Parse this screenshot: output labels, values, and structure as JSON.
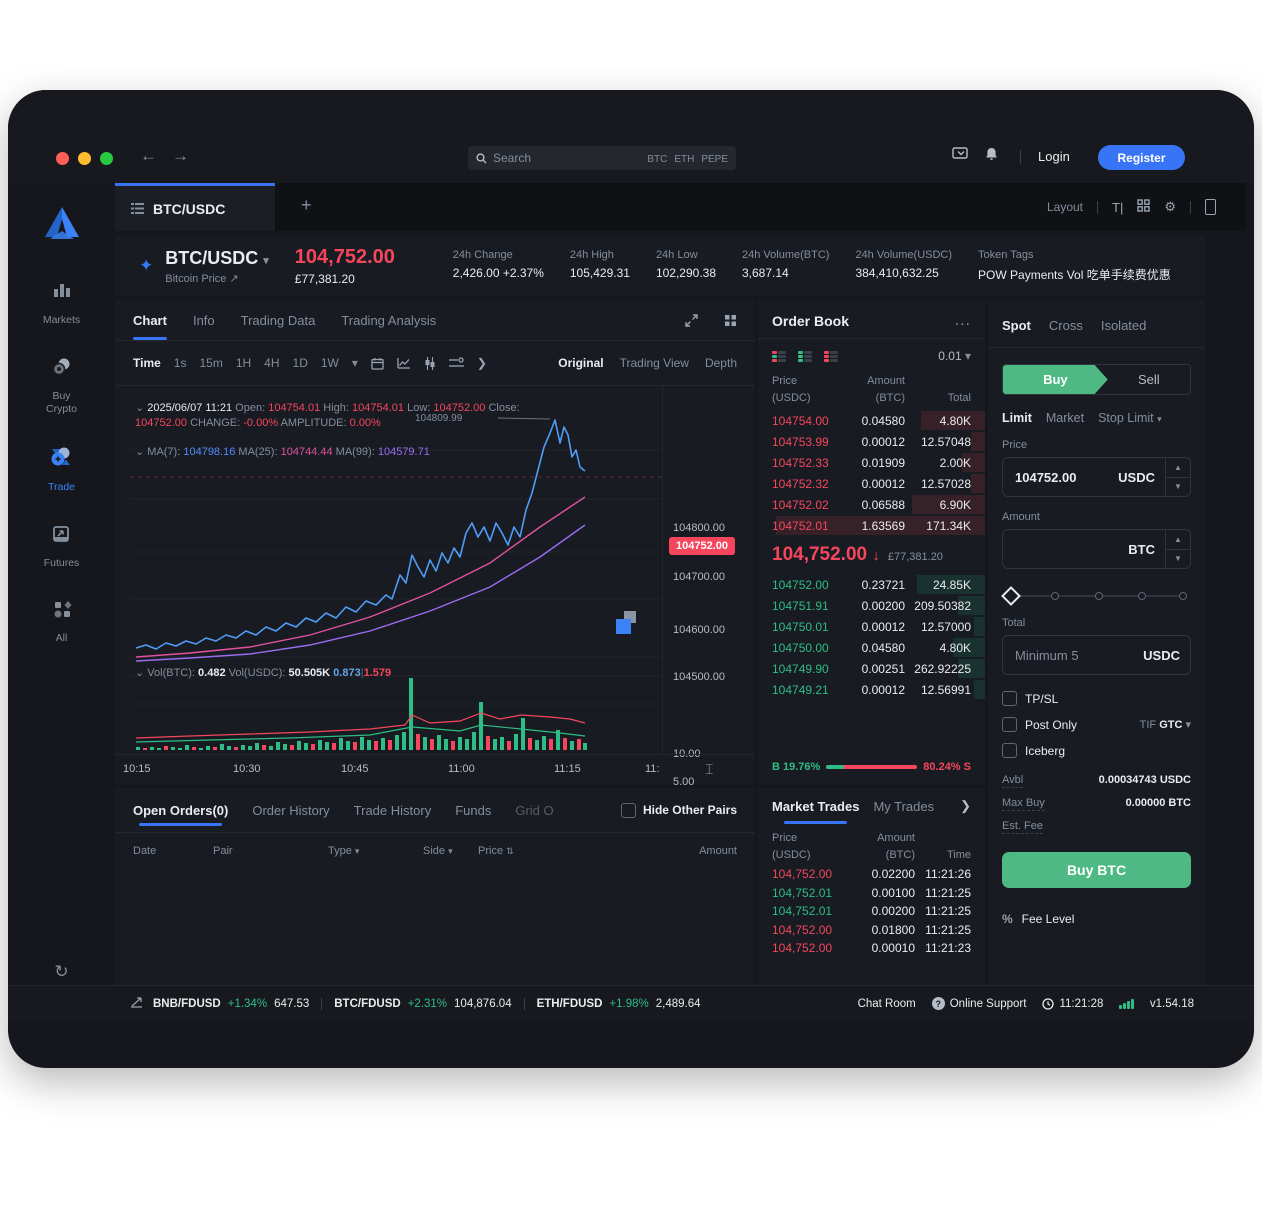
{
  "colors": {
    "accent": "#3875f6",
    "red": "#f6465d",
    "green": "#2ebd85",
    "buy_green": "#4eb983"
  },
  "chrome": {
    "search_placeholder": "Search",
    "search_tokens": [
      "BTC",
      "ETH",
      "PEPE"
    ],
    "login": "Login",
    "register": "Register"
  },
  "layoutbar": {
    "label": "Layout",
    "text_icon": "T|"
  },
  "tabbar": {
    "active_tab": "BTC/USDC",
    "add": "+"
  },
  "sidebar": {
    "items": [
      {
        "label": "Markets"
      },
      {
        "label": "Buy Crypto"
      },
      {
        "label": "Trade",
        "active": true
      },
      {
        "label": "Futures"
      },
      {
        "label": "All"
      }
    ]
  },
  "ticker": {
    "pair": "BTC/USDC",
    "caret": "▾",
    "subtitle": "Bitcoin Price ↗",
    "last_price": "104,752.00",
    "fiat_price": "£77,381.20",
    "stats": [
      {
        "label": "24h Change",
        "value": "2,426.00 +2.37%",
        "color": "green"
      },
      {
        "label": "24h High",
        "value": "105,429.31"
      },
      {
        "label": "24h Low",
        "value": "102,290.38"
      },
      {
        "label": "24h Volume(BTC)",
        "value": "3,687.14"
      },
      {
        "label": "24h Volume(USDC)",
        "value": "384,410,632.25"
      },
      {
        "label": "Token Tags",
        "value": "POW Payments Vol 吃单手续费优惠",
        "color": "blue"
      }
    ]
  },
  "chart": {
    "tabs": [
      "Chart",
      "Info",
      "Trading Data",
      "Trading Analysis"
    ],
    "time_label": "Time",
    "intervals": [
      "1s",
      "15m",
      "1H",
      "4H",
      "1D",
      "1W"
    ],
    "views": [
      "Original",
      "Trading View",
      "Depth"
    ],
    "ohlc_prefix": "2025/06/07 11:21",
    "ohlc": [
      {
        "k": "Open:",
        "v": "104754.01"
      },
      {
        "k": "High:",
        "v": "104754.01"
      },
      {
        "k": "Low:",
        "v": "104752.00"
      },
      {
        "k": "Close:",
        "v": "104752.00"
      },
      {
        "k": "CHANGE:",
        "v": "-0.00%"
      },
      {
        "k": "AMPLITUDE:",
        "v": "0.00%"
      }
    ],
    "ma": [
      {
        "k": "MA(7):",
        "v": "104798.16"
      },
      {
        "k": "MA(25):",
        "v": "104744.44"
      },
      {
        "k": "MA(99):",
        "v": "104579.71"
      }
    ],
    "vol": {
      "btc_label": "Vol(BTC):",
      "btc": "0.482",
      "usdc_label": "Vol(USDC):",
      "usdc": "50.505K",
      "buy": "0.873",
      "sell": "1.579"
    },
    "peak_label": "104809.99",
    "y_ticks": [
      {
        "t": "104800.00",
        "y": 143
      },
      {
        "t": "104700.00",
        "y": 192
      },
      {
        "t": "104600.00",
        "y": 245
      },
      {
        "t": "104500.00",
        "y": 292
      }
    ],
    "price_tag": {
      "t": "104752.00",
      "y": 163
    },
    "vol_ticks": [
      {
        "t": "10.00",
        "y": 369
      },
      {
        "t": "5.00",
        "y": 397
      }
    ],
    "x_ticks": [
      {
        "t": "10:15",
        "x": 8
      },
      {
        "t": "10:30",
        "x": 118
      },
      {
        "t": "10:45",
        "x": 226
      },
      {
        "t": "11:00",
        "x": 333
      },
      {
        "t": "11:15",
        "x": 439
      },
      {
        "t": "11:",
        "x": 530
      }
    ],
    "series": {
      "price": "6,243 16,240 26,244 36,238 46,241 56,236 66,239 76,233 86,236 96,230 106,233 116,226 126,230 136,222 146,226 156,218 166,222 176,213 186,217 196,208 206,213 216,202 226,207 236,196 246,200 256,190 262,194 270,170 276,178 282,150 288,162 294,172 300,155 306,166 312,148 318,158 324,143 330,152 336,128 342,118 348,132 354,122 360,136 366,118 372,128 378,140 384,122 390,132 396,105 402,88 408,65 414,42 420,28 425,15 430,38 434,22 438,30 442,52 446,45 450,62 455,66",
      "ma25": "6,252 60,248 120,242 180,230 240,212 300,188 360,158 410,122 455,92",
      "ma99": "6,256 60,253 120,249 180,240 240,226 300,206 360,182 410,152 455,120",
      "vol_ma_red": "6,333 60,331 120,329 180,327 240,324 275,320 282,310 300,318 330,316 351,308 370,314 391,310 420,312 440,314 455,318",
      "vol_ma_green": "6,337 80,335 160,333 240,330 282,322 330,326 351,320 391,324 430,328 455,331",
      "volume": [
        [
          6,
          3,
          "g"
        ],
        [
          13,
          2,
          "r"
        ],
        [
          20,
          3,
          "g"
        ],
        [
          27,
          2,
          "g"
        ],
        [
          34,
          4,
          "r"
        ],
        [
          41,
          3,
          "g"
        ],
        [
          48,
          2,
          "g"
        ],
        [
          55,
          5,
          "g"
        ],
        [
          62,
          3,
          "r"
        ],
        [
          69,
          2,
          "g"
        ],
        [
          76,
          4,
          "g"
        ],
        [
          83,
          3,
          "r"
        ],
        [
          90,
          6,
          "g"
        ],
        [
          97,
          4,
          "g"
        ],
        [
          104,
          3,
          "r"
        ],
        [
          111,
          5,
          "g"
        ],
        [
          118,
          4,
          "g"
        ],
        [
          125,
          7,
          "g"
        ],
        [
          132,
          5,
          "r"
        ],
        [
          139,
          4,
          "g"
        ],
        [
          146,
          8,
          "g"
        ],
        [
          153,
          6,
          "g"
        ],
        [
          160,
          5,
          "r"
        ],
        [
          167,
          9,
          "g"
        ],
        [
          174,
          7,
          "g"
        ],
        [
          181,
          6,
          "r"
        ],
        [
          188,
          10,
          "g"
        ],
        [
          195,
          8,
          "g"
        ],
        [
          202,
          7,
          "r"
        ],
        [
          209,
          12,
          "g"
        ],
        [
          216,
          9,
          "g"
        ],
        [
          223,
          8,
          "r"
        ],
        [
          230,
          13,
          "g"
        ],
        [
          237,
          10,
          "g"
        ],
        [
          244,
          9,
          "r"
        ],
        [
          251,
          12,
          "g"
        ],
        [
          258,
          10,
          "r"
        ],
        [
          265,
          15,
          "g"
        ],
        [
          272,
          18,
          "g"
        ],
        [
          279,
          72,
          "g"
        ],
        [
          286,
          16,
          "r"
        ],
        [
          293,
          13,
          "g"
        ],
        [
          300,
          11,
          "r"
        ],
        [
          307,
          15,
          "g"
        ],
        [
          314,
          11,
          "g"
        ],
        [
          321,
          9,
          "r"
        ],
        [
          328,
          13,
          "g"
        ],
        [
          335,
          11,
          "g"
        ],
        [
          342,
          18,
          "g"
        ],
        [
          349,
          48,
          "g"
        ],
        [
          356,
          14,
          "r"
        ],
        [
          363,
          11,
          "g"
        ],
        [
          370,
          13,
          "g"
        ],
        [
          377,
          9,
          "r"
        ],
        [
          384,
          16,
          "g"
        ],
        [
          391,
          32,
          "g"
        ],
        [
          398,
          12,
          "r"
        ],
        [
          405,
          10,
          "g"
        ],
        [
          412,
          14,
          "g"
        ],
        [
          419,
          11,
          "r"
        ],
        [
          426,
          20,
          "g"
        ],
        [
          433,
          12,
          "r"
        ],
        [
          440,
          9,
          "g"
        ],
        [
          447,
          11,
          "r"
        ],
        [
          453,
          7,
          "g"
        ]
      ]
    }
  },
  "order_book": {
    "title": "Order Book",
    "more": "...",
    "precision": "0.01",
    "caret": "▾",
    "cols": {
      "p1": "Price",
      "p2": "(USDC)",
      "a1": "Amount",
      "a2": "(BTC)",
      "t": "Total"
    },
    "asks": [
      {
        "p": "104754.00",
        "a": "0.04580",
        "t": "4.80K",
        "d": 0.28
      },
      {
        "p": "104753.99",
        "a": "0.00012",
        "t": "12.57048",
        "d": 0.06
      },
      {
        "p": "104752.33",
        "a": "0.01909",
        "t": "2.00K",
        "d": 0.1
      },
      {
        "p": "104752.32",
        "a": "0.00012",
        "t": "12.57028",
        "d": 0.06
      },
      {
        "p": "104752.02",
        "a": "0.06588",
        "t": "6.90K",
        "d": 0.32
      },
      {
        "p": "104752.01",
        "a": "1.63569",
        "t": "171.34K",
        "d": 0.92
      }
    ],
    "mid": {
      "price": "104,752.00",
      "arrow": "↓",
      "fiat": "£77,381.20"
    },
    "bids": [
      {
        "p": "104752.00",
        "a": "0.23721",
        "t": "24.85K",
        "d": 0.3
      },
      {
        "p": "104751.91",
        "a": "0.00200",
        "t": "209.50382",
        "d": 0.12
      },
      {
        "p": "104750.01",
        "a": "0.00012",
        "t": "12.57000",
        "d": 0.05
      },
      {
        "p": "104750.00",
        "a": "0.04580",
        "t": "4.80K",
        "d": 0.14
      },
      {
        "p": "104749.90",
        "a": "0.00251",
        "t": "262.92225",
        "d": 0.12
      },
      {
        "p": "104749.21",
        "a": "0.00012",
        "t": "12.56991",
        "d": 0.05
      }
    ],
    "ratio": {
      "b_label": "B",
      "buy": "19.76%",
      "sell": "80.24%",
      "s_label": "S"
    }
  },
  "trade": {
    "margin_tabs": [
      "Spot",
      "Cross",
      "Isolated"
    ],
    "buy": "Buy",
    "sell": "Sell",
    "order_types": [
      "Limit",
      "Market",
      "Stop Limit"
    ],
    "stop_caret": "▾",
    "price_label": "Price",
    "price_value": "104752.00",
    "price_unit": "USDC",
    "amount_label": "Amount",
    "amount_unit": "BTC",
    "total_label": "Total",
    "total_placeholder": "Minimum 5",
    "total_unit": "USDC",
    "checkboxes": [
      "TP/SL",
      "Post Only",
      "Iceberg"
    ],
    "tif_label": "TIF",
    "tif_value": "GTC",
    "avbl_label": "Avbl",
    "avbl_value": "0.00034743 USDC",
    "maxbuy_label": "Max Buy",
    "maxbuy_value": "0.00000 BTC",
    "estfee_label": "Est. Fee",
    "estfee_value": "",
    "buy_button": "Buy BTC",
    "fee_pct": "%",
    "fee_level": "Fee Level"
  },
  "orders": {
    "tabs": [
      "Open Orders(0)",
      "Order History",
      "Trade History",
      "Funds",
      "Grid O"
    ],
    "hide_pairs": "Hide Other Pairs",
    "headers": [
      {
        "t": "Date",
        "ic": ""
      },
      {
        "t": "Pair",
        "ic": ""
      },
      {
        "t": "Type",
        "ic": "▾"
      },
      {
        "t": "Side",
        "ic": "▾"
      },
      {
        "t": "Price",
        "ic": "⇅"
      },
      {
        "t": "Amount",
        "ic": ""
      }
    ]
  },
  "market_trades": {
    "title": "Market Trades",
    "alt": "My Trades",
    "arrow": "❯",
    "cols": {
      "p1": "Price",
      "p2": "(USDC)",
      "a1": "Amount",
      "a2": "(BTC)",
      "t": "Time"
    },
    "rows": [
      {
        "p": "104,752.00",
        "a": "0.02200",
        "t": "11:21:26",
        "side": "sell"
      },
      {
        "p": "104,752.01",
        "a": "0.00100",
        "t": "11:21:25",
        "side": "buy"
      },
      {
        "p": "104,752.01",
        "a": "0.00200",
        "t": "11:21:25",
        "side": "buy"
      },
      {
        "p": "104,752.00",
        "a": "0.01800",
        "t": "11:21:25",
        "side": "sell"
      },
      {
        "p": "104,752.00",
        "a": "0.00010",
        "t": "11:21:23",
        "side": "sell"
      }
    ]
  },
  "footer": {
    "pairs": [
      {
        "n": "BNB/FDUSD",
        "c": "+1.34%",
        "p": "647.53"
      },
      {
        "n": "BTC/FDUSD",
        "c": "+2.31%",
        "p": "104,876.04"
      },
      {
        "n": "ETH/FDUSD",
        "c": "+1.98%",
        "p": "2,489.64"
      }
    ],
    "chat": "Chat Room",
    "support": "Online Support",
    "time": "11:21:28",
    "version": "v1.54.18"
  }
}
